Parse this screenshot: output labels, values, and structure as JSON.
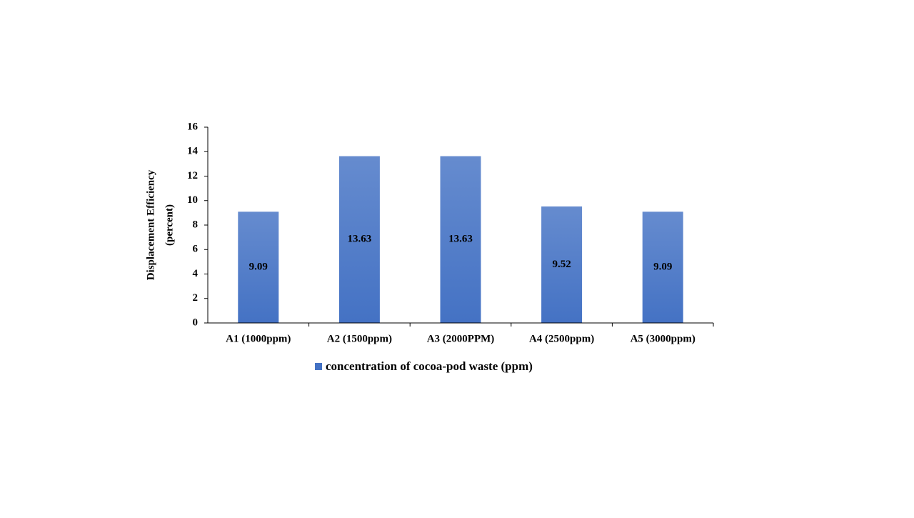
{
  "chart_data": {
    "type": "bar",
    "y_label": [
      "Displacement Efficiency",
      "(percent)"
    ],
    "categories": [
      "A1 (1000ppm)",
      "A2 (1500ppm)",
      "A3 (2000PPM)",
      "A4 (2500ppm)",
      "A5 (3000ppm)"
    ],
    "series": [
      {
        "name": "concentration of cocoa-pod waste (ppm)",
        "color": "#4472c4",
        "values": [
          9.09,
          13.63,
          13.63,
          9.52,
          9.09
        ]
      }
    ],
    "ylim": [
      0,
      16
    ],
    "yticks": [
      0,
      2,
      4,
      6,
      8,
      10,
      12,
      14,
      16
    ],
    "grid": false,
    "legend": "bottom"
  }
}
